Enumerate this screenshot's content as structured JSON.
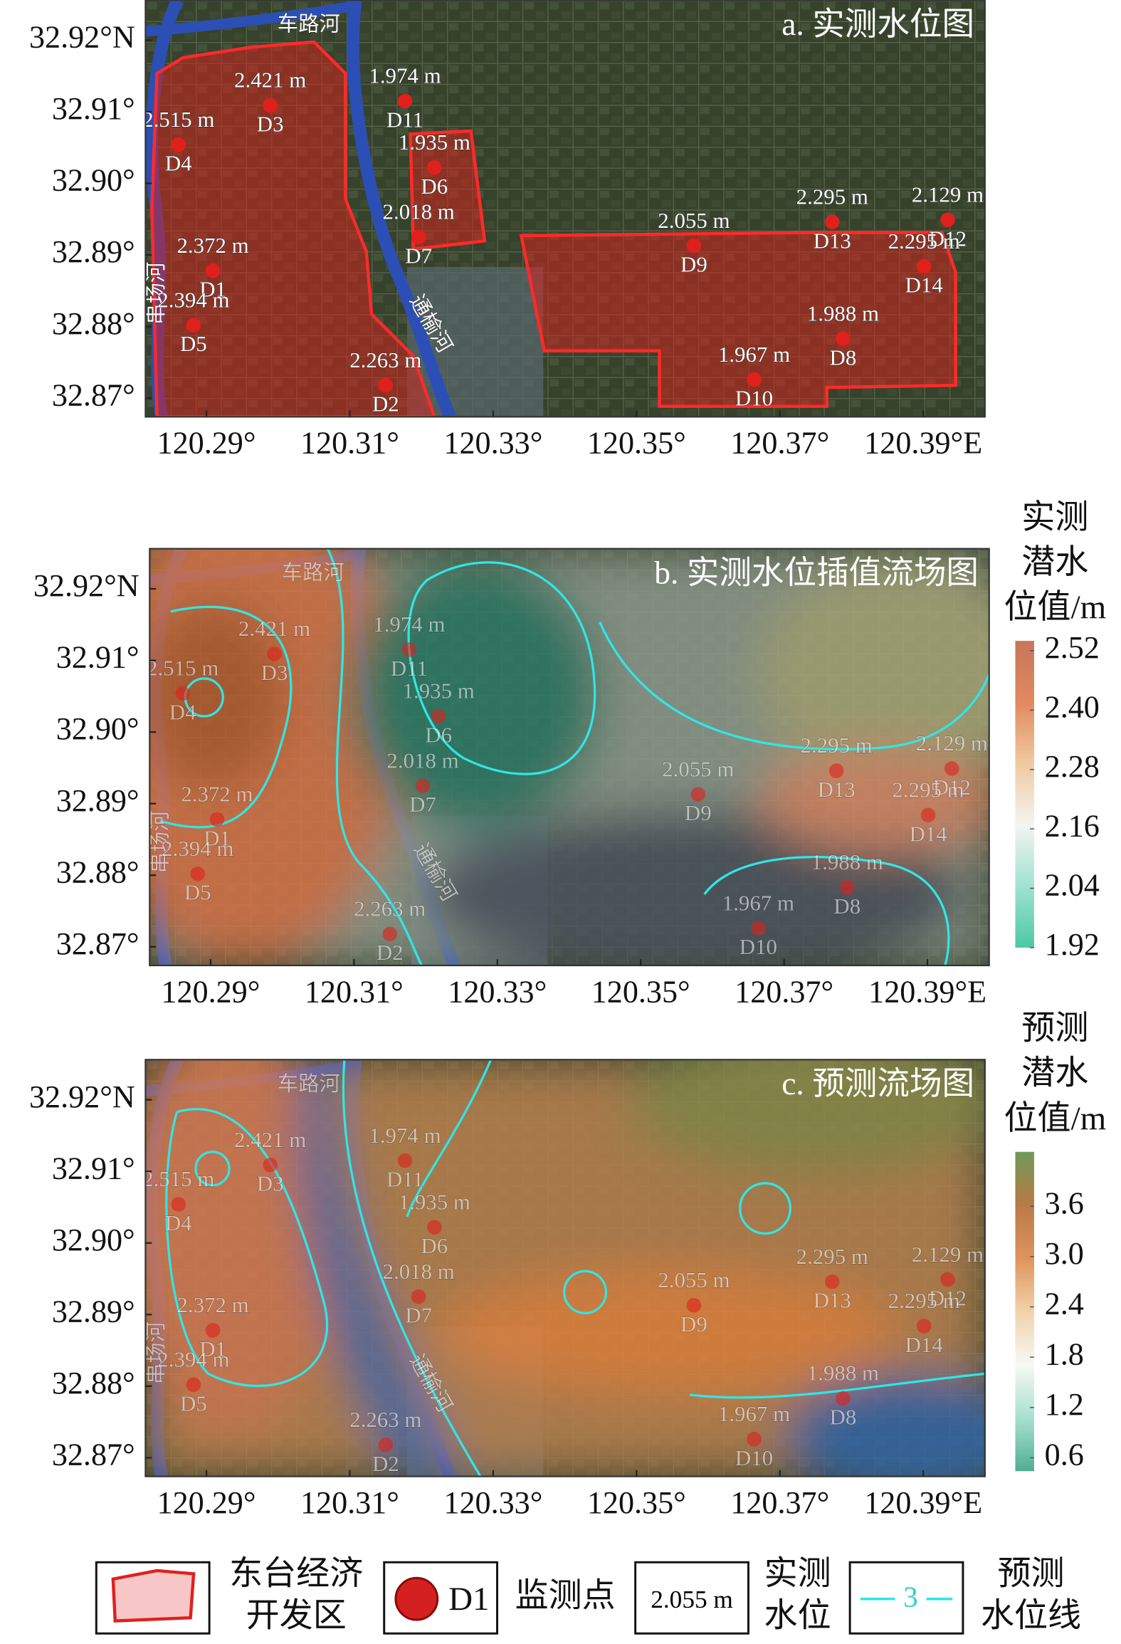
{
  "chart_data": [
    {
      "type": "map",
      "title": "a. 实测水位图",
      "xlim": [
        120.2815,
        120.3986
      ],
      "ylim": [
        32.8674,
        32.9256
      ],
      "xticks": [
        {
          "value": 120.29,
          "label": "120.29°"
        },
        {
          "value": 120.31,
          "label": "120.31°"
        },
        {
          "value": 120.33,
          "label": "120.33°"
        },
        {
          "value": 120.35,
          "label": "120.35°"
        },
        {
          "value": 120.37,
          "label": "120.37°"
        },
        {
          "value": 120.39,
          "label": "120.39°E"
        }
      ],
      "yticks": [
        {
          "value": 32.92,
          "label": "32.92°N"
        },
        {
          "value": 32.91,
          "label": "32.91°"
        },
        {
          "value": 32.9,
          "label": "32.90°"
        },
        {
          "value": 32.89,
          "label": "32.89°"
        },
        {
          "value": 32.88,
          "label": "32.88°"
        },
        {
          "value": 32.87,
          "label": "32.87°"
        }
      ],
      "rivers": [
        "车路河",
        "串场河",
        "通榆河"
      ],
      "points": {
        "names": [
          "D1",
          "D2",
          "D3",
          "D4",
          "D5",
          "D6",
          "D7",
          "D8",
          "D9",
          "D10",
          "D11",
          "D12",
          "D13",
          "D14"
        ],
        "lon": [
          120.2909,
          120.315,
          120.2989,
          120.2861,
          120.2882,
          120.3218,
          120.3196,
          120.3788,
          120.358,
          120.3664,
          120.3177,
          120.3934,
          120.3773,
          120.3901
        ],
        "lat": [
          32.8878,
          32.8718,
          32.9109,
          32.9054,
          32.8802,
          32.9022,
          32.8925,
          32.8783,
          32.8913,
          32.8726,
          32.9115,
          32.8949,
          32.8946,
          32.8884
        ],
        "values": [
          2.372,
          2.263,
          2.421,
          2.515,
          2.394,
          1.935,
          2.018,
          1.988,
          2.055,
          1.967,
          1.974,
          2.129,
          2.295,
          2.295
        ],
        "value_labels": [
          "2.372 m",
          "2.263 m",
          "2.421 m",
          "2.515 m",
          "2.394 m",
          "1.935 m",
          "2.018 m",
          "1.988 m",
          "2.055 m",
          "1.967 m",
          "1.974 m",
          "2.129 m",
          "2.295 m",
          "2.295 m"
        ],
        "color": "#e0201c"
      }
    },
    {
      "type": "map",
      "title": "b. 实测水位插值流场图",
      "xlim": [
        120.2815,
        120.3986
      ],
      "ylim": [
        32.8674,
        32.9256
      ],
      "xticks": [
        {
          "value": 120.29,
          "label": "120.29°"
        },
        {
          "value": 120.31,
          "label": "120.31°"
        },
        {
          "value": 120.33,
          "label": "120.33°"
        },
        {
          "value": 120.35,
          "label": "120.35°"
        },
        {
          "value": 120.37,
          "label": "120.37°"
        },
        {
          "value": 120.39,
          "label": "120.39°E"
        }
      ],
      "yticks": [
        {
          "value": 32.92,
          "label": "32.92°N"
        },
        {
          "value": 32.91,
          "label": "32.91°"
        },
        {
          "value": 32.9,
          "label": "32.90°"
        },
        {
          "value": 32.89,
          "label": "32.89°"
        },
        {
          "value": 32.88,
          "label": "32.88°"
        },
        {
          "value": 32.87,
          "label": "32.87°"
        }
      ],
      "colorbar": {
        "title": [
          "实测",
          "潜水",
          "位值/m"
        ],
        "lim": [
          1.92,
          2.54
        ],
        "ticks": [
          2.52,
          {
            "value": 2.4,
            "label": "2.40"
          },
          2.28,
          2.16,
          2.04,
          1.92
        ],
        "colors": [
          "#4cc7a4",
          "#9fe3d0",
          "#f4f4f0",
          "#f0c9a0",
          "#e08a5e",
          "#c8755a"
        ]
      }
    },
    {
      "type": "map",
      "title": "c. 预测流场图",
      "xlim": [
        120.2815,
        120.3986
      ],
      "ylim": [
        32.8674,
        32.9256
      ],
      "xticks": [
        {
          "value": 120.29,
          "label": "120.29°"
        },
        {
          "value": 120.31,
          "label": "120.31°"
        },
        {
          "value": 120.33,
          "label": "120.33°"
        },
        {
          "value": 120.35,
          "label": "120.35°"
        },
        {
          "value": 120.37,
          "label": "120.37°"
        },
        {
          "value": 120.39,
          "label": "120.39°E"
        }
      ],
      "yticks": [
        {
          "value": 32.92,
          "label": "32.92°N"
        },
        {
          "value": 32.91,
          "label": "32.91°"
        },
        {
          "value": 32.9,
          "label": "32.90°"
        },
        {
          "value": 32.89,
          "label": "32.89°"
        },
        {
          "value": 32.88,
          "label": "32.88°"
        },
        {
          "value": 32.87,
          "label": "32.87°"
        }
      ],
      "colorbar": {
        "title": [
          "预测",
          "潜水",
          "位值/m"
        ],
        "lim": [
          0.44,
          4.25
        ],
        "ticks": [
          3.6,
          {
            "value": 3,
            "label": "3.0"
          },
          2.4,
          1.8,
          1.2,
          0.6
        ],
        "colors": [
          "#4fae90",
          "#a8e0cf",
          "#f8f8f4",
          "#f0d2a8",
          "#e0935e",
          "#b87a45",
          "#6f9a5a"
        ]
      }
    }
  ],
  "legend": {
    "items": [
      {
        "label": [
          "东台经济",
          "开发区"
        ]
      },
      {
        "symbol": "D1",
        "label": [
          "监测点"
        ]
      },
      {
        "symbol": "2.055 m",
        "label": [
          "实测",
          "水位"
        ]
      },
      {
        "symbol": "3",
        "label": [
          "预测",
          "水位线"
        ]
      }
    ]
  }
}
